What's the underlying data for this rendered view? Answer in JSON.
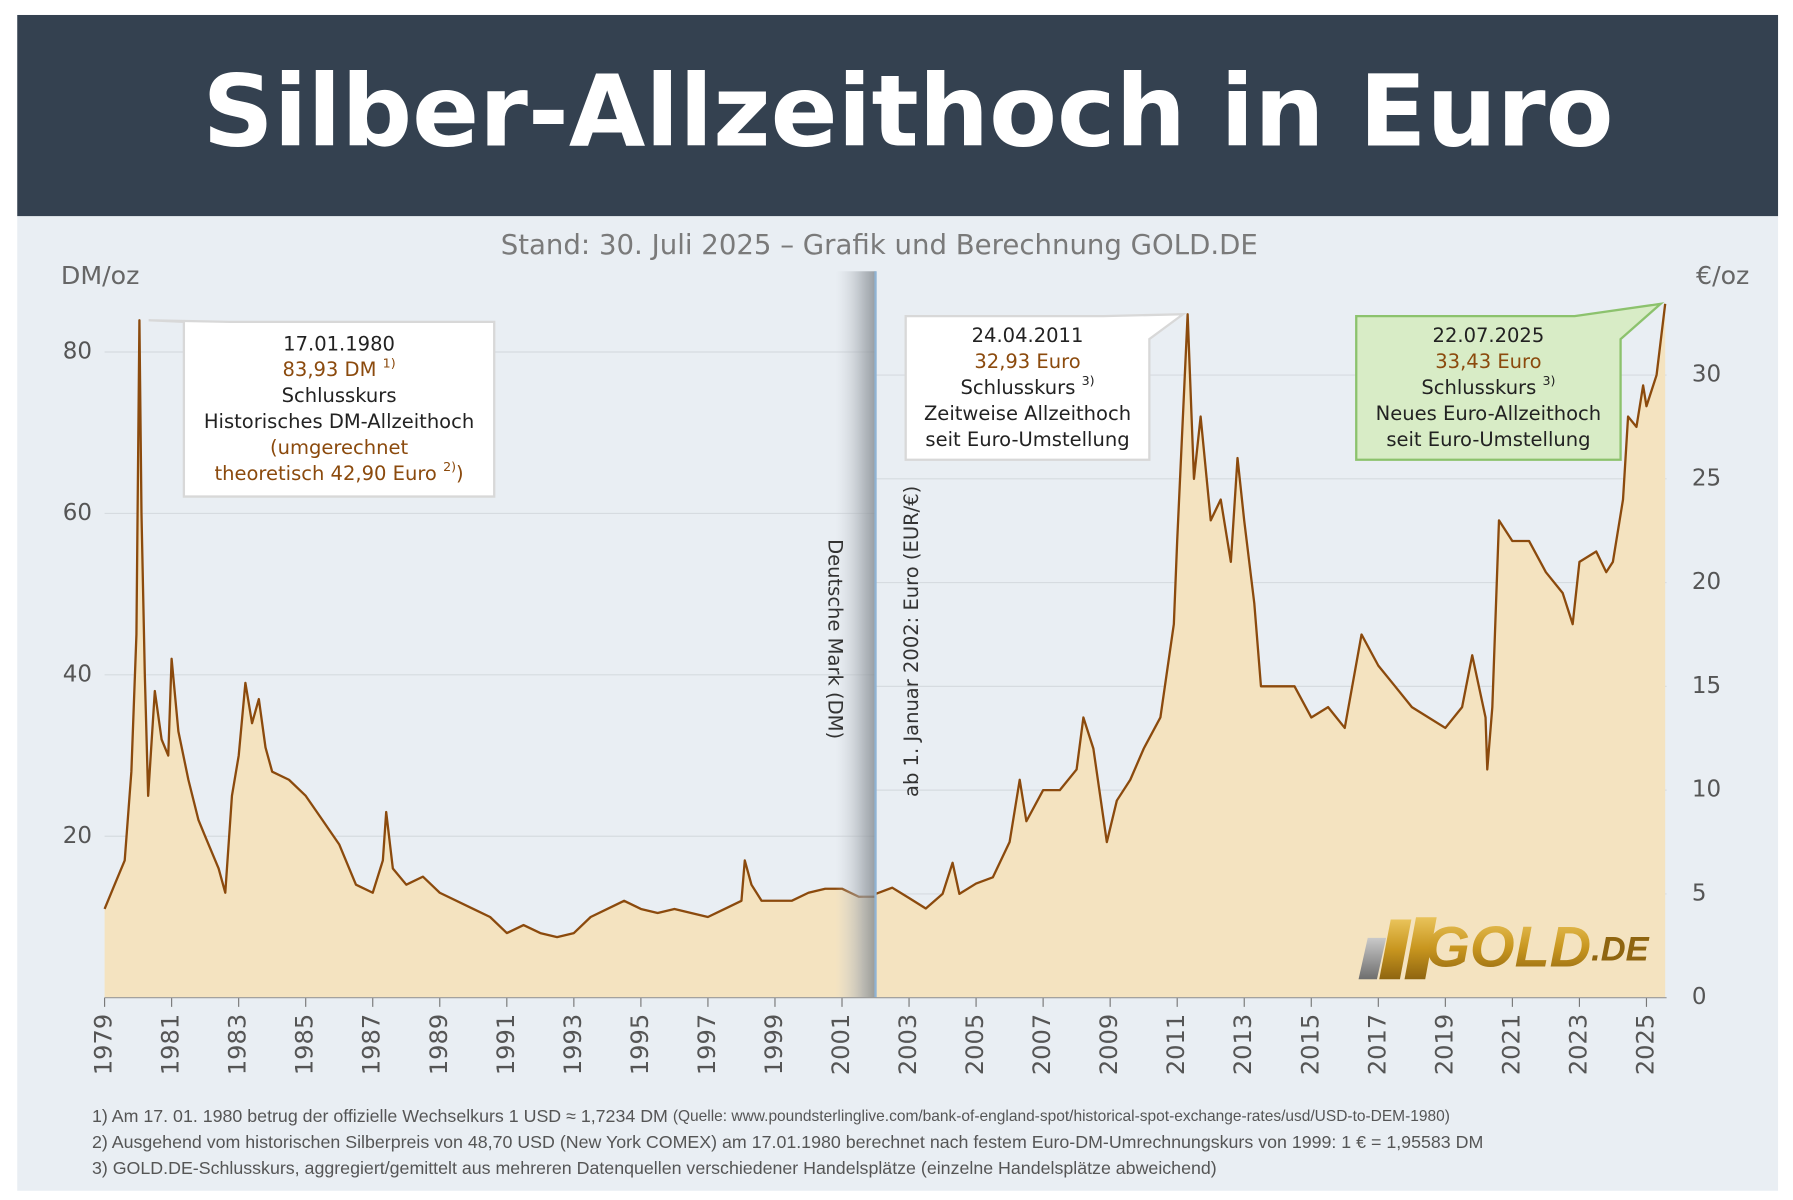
{
  "chart_data": {
    "type": "area",
    "title": "Silber-Allzeithoch in Euro",
    "subtitle": "Stand: 30. Juli 2025 – Grafik und Berechnung GOLD.DE",
    "y_label": "DM/oz",
    "y2_label": "€/oz",
    "xlim": [
      1979,
      2025.6
    ],
    "xticks": [
      1979,
      1981,
      1983,
      1985,
      1987,
      1989,
      1991,
      1993,
      1995,
      1997,
      1999,
      2001,
      2003,
      2005,
      2007,
      2009,
      2011,
      2013,
      2015,
      2017,
      2019,
      2021,
      2023,
      2025
    ],
    "ylim": [
      0,
      90
    ],
    "yticks": [
      20,
      40,
      60,
      80
    ],
    "y2lim": [
      0,
      35
    ],
    "y2ticks": [
      0,
      5,
      10,
      15,
      20,
      25,
      30
    ],
    "grid": true,
    "series": [
      {
        "name": "Deutsche Mark (DM)",
        "color": "#8b4a0d",
        "fill": "#f4e3c0",
        "x": [
          1979.0,
          1979.3,
          1979.6,
          1979.8,
          1979.95,
          1980.04,
          1980.1,
          1980.2,
          1980.3,
          1980.5,
          1980.7,
          1980.9,
          1981.0,
          1981.2,
          1981.5,
          1981.8,
          1982.0,
          1982.4,
          1982.6,
          1982.8,
          1983.0,
          1983.2,
          1983.4,
          1983.6,
          1983.8,
          1984.0,
          1984.5,
          1985.0,
          1985.5,
          1986.0,
          1986.5,
          1987.0,
          1987.3,
          1987.4,
          1987.6,
          1988.0,
          1988.5,
          1989.0,
          1990.0,
          1990.5,
          1991.0,
          1991.5,
          1992.0,
          1992.5,
          1993.0,
          1993.5,
          1994.0,
          1994.5,
          1995.0,
          1995.5,
          1996.0,
          1997.0,
          1997.5,
          1998.0,
          1998.1,
          1998.3,
          1998.6,
          1999.0,
          1999.5,
          2000.0,
          2000.5,
          2001.0,
          2001.5,
          2001.99
        ],
        "values": [
          11,
          14,
          17,
          28,
          45,
          83.93,
          60,
          40,
          25,
          38,
          32,
          30,
          42,
          33,
          27,
          22,
          20,
          16,
          13,
          25,
          30,
          39,
          34,
          37,
          31,
          28,
          27,
          25,
          22,
          19,
          14,
          13,
          17,
          23,
          16,
          14,
          15,
          13,
          11,
          10,
          8,
          9,
          8,
          7.5,
          8,
          10,
          11,
          12,
          11,
          10.5,
          11,
          10,
          11,
          12,
          17,
          14,
          12,
          12,
          12,
          13,
          13.5,
          13.5,
          12.5,
          12.5
        ]
      },
      {
        "name": "Euro (EUR/€)",
        "color": "#8b4a0d",
        "fill": "#f4e3c0",
        "axis": "y2",
        "x": [
          2002.0,
          2002.5,
          2003.0,
          2003.5,
          2004.0,
          2004.3,
          2004.5,
          2005.0,
          2005.5,
          2006.0,
          2006.3,
          2006.5,
          2007.0,
          2007.5,
          2008.0,
          2008.2,
          2008.5,
          2008.9,
          2009.2,
          2009.6,
          2010.0,
          2010.5,
          2010.9,
          2011.0,
          2011.31,
          2011.5,
          2011.7,
          2012.0,
          2012.3,
          2012.6,
          2012.8,
          2013.0,
          2013.3,
          2013.5,
          2014.0,
          2014.5,
          2015.0,
          2015.5,
          2016.0,
          2016.5,
          2017.0,
          2017.5,
          2018.0,
          2018.5,
          2019.0,
          2019.5,
          2019.8,
          2020.2,
          2020.25,
          2020.4,
          2020.6,
          2021.0,
          2021.5,
          2022.0,
          2022.5,
          2022.8,
          2023.0,
          2023.5,
          2023.8,
          2024.0,
          2024.3,
          2024.45,
          2024.7,
          2024.9,
          2025.0,
          2025.3,
          2025.56
        ],
        "values": [
          5.0,
          5.3,
          4.8,
          4.3,
          5.0,
          6.5,
          5.0,
          5.5,
          5.8,
          7.5,
          10.5,
          8.5,
          10.0,
          10.0,
          11.0,
          13.5,
          12.0,
          7.5,
          9.5,
          10.5,
          12.0,
          13.5,
          18.0,
          22,
          32.93,
          25,
          28,
          23,
          24,
          21,
          26,
          23,
          19,
          15,
          15,
          15,
          13.5,
          14,
          13,
          17.5,
          16,
          15,
          14,
          13.5,
          13,
          14,
          16.5,
          13.5,
          11,
          14,
          23,
          22,
          22,
          20.5,
          19.5,
          18,
          21,
          21.5,
          20.5,
          21,
          24,
          28,
          27.5,
          29.5,
          28.5,
          30,
          33.43
        ]
      }
    ],
    "annotations": [
      {
        "lines": [
          {
            "t": "17.01.1980"
          },
          {
            "t": "83,93 DM",
            "sup": "1)",
            "accent": true
          },
          {
            "t": "Schlusskurs"
          },
          {
            "t": "Historisches DM-Allzeithoch"
          },
          {
            "t": "(umgerechnet",
            "accent": true
          },
          {
            "t": "theoretisch 42,90 Euro",
            "sup": "2)",
            "tail": ")",
            "accent": true
          }
        ]
      },
      {
        "lines": [
          {
            "t": "24.04.2011"
          },
          {
            "t": "32,93 Euro",
            "accent": true
          },
          {
            "t": "Schlusskurs",
            "sup": "3)"
          },
          {
            "t": "Zeitweise Allzeithoch"
          },
          {
            "t": "seit Euro-Umstellung"
          }
        ]
      },
      {
        "highlight": true,
        "lines": [
          {
            "t": "22.07.2025"
          },
          {
            "t": "33,43 Euro",
            "accent": true
          },
          {
            "t": "Schlusskurs",
            "sup": "3)"
          },
          {
            "t": "Neues Euro-Allzeithoch"
          },
          {
            "t": "seit Euro-Umstellung"
          }
        ]
      }
    ],
    "period_labels": [
      "Deutsche Mark (DM)",
      "ab 1. Januar 2002: Euro (EUR/€)"
    ],
    "logo": {
      "text": "GOLD",
      "suffix": ".DE"
    },
    "footnotes": [
      {
        "text": "1) Am 17. 01. 1980 betrug der offizielle Wechselkurs 1 USD ≈ 1,7234 DM ",
        "small": "(Quelle: www.poundsterlinglive.com/bank-of-england-spot/historical-spot-exchange-rates/usd/USD-to-DEM-1980)"
      },
      {
        "text": "2) Ausgehend vom historischen Silberpreis von 48,70 USD (New York COMEX) am 17.01.1980 berechnet nach festem Euro-DM-Umrechnungskurs von 1999: 1 € = 1,95583 DM"
      },
      {
        "text": "3) GOLD.DE-Schlusskurs, aggregiert/gemittelt aus mehreren Datenquellen verschiedener Handelsplätze (einzelne Handelsplätze abweichend)"
      }
    ]
  }
}
